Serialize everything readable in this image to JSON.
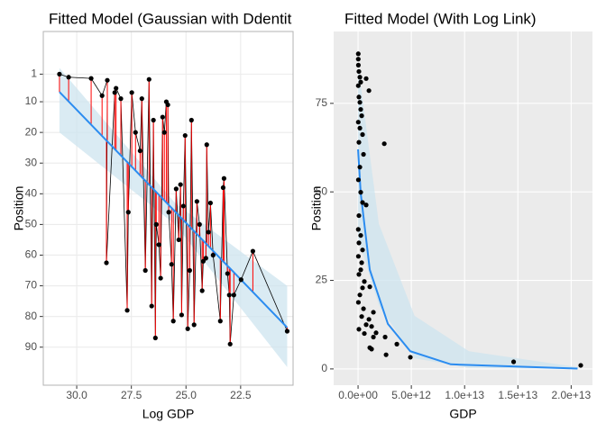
{
  "chart_data": [
    {
      "type": "scatter",
      "title": "Fitted Model (Gaussian with Ddentit",
      "x_label": "Log GDP",
      "y_label": "Position",
      "xlim": [
        31.53,
        20.1
      ],
      "ylim": [
        102.4,
        -12.9
      ],
      "xticks": [
        {
          "value": 30,
          "label": "30.0"
        },
        27.5,
        {
          "value": 25,
          "label": "25.0"
        },
        22.5
      ],
      "yticks": [
        1,
        10,
        20,
        30,
        40,
        50,
        60,
        70,
        80,
        90
      ],
      "background": "#ffffff",
      "grid_color": "#ebebeb",
      "panel_border": "#b3b3b3",
      "grid": true,
      "point_color": "#000000",
      "connect": true,
      "residual_color": "#ff0000",
      "x": [
        30.79,
        30.37,
        29.34,
        28.84,
        28.6,
        28.64,
        28.26,
        28.2,
        27.98,
        27.69,
        27.64,
        27.48,
        27.31,
        27.1,
        27.02,
        26.86,
        26.69,
        26.57,
        26.49,
        26.4,
        26.36,
        26.24,
        26.16,
        26.07,
        25.99,
        25.9,
        25.83,
        25.79,
        25.66,
        25.58,
        25.45,
        25.33,
        25.25,
        25.2,
        25.12,
        25.04,
        24.92,
        24.83,
        24.75,
        24.63,
        24.5,
        24.38,
        24.26,
        24.21,
        24.09,
        24.05,
        23.97,
        23.88,
        23.76,
        23.43,
        23.3,
        23.26,
        23.1,
        23.02,
        22.98,
        22.81,
        22.48,
        21.94,
        20.37
      ],
      "y": [
        1,
        2,
        2.4,
        8,
        3,
        62.5,
        7,
        5.6,
        9,
        78,
        46,
        7,
        20,
        26,
        9,
        65,
        2.7,
        76.6,
        16,
        87,
        50,
        56.6,
        67.5,
        15,
        20,
        10,
        11,
        46,
        63,
        81.5,
        38.4,
        55,
        37,
        79.5,
        44,
        21,
        84,
        65,
        16,
        82.7,
        42.5,
        50,
        71.6,
        62,
        61,
        24,
        52.5,
        43,
        60,
        81.5,
        38,
        35,
        66,
        73,
        89,
        73,
        68,
        58.7,
        84.8
      ],
      "fit": {
        "color": "#2b8cf0",
        "x": [
          30.79,
          20.37
        ],
        "y": [
          6.8,
          83.6
        ]
      },
      "ribbon": {
        "color": "#cde4ef",
        "x": [
          30.79,
          25.5,
          20.37
        ],
        "lower": [
          -1,
          43,
          70
        ],
        "upper": [
          20,
          50,
          96.5
        ]
      }
    },
    {
      "type": "scatter",
      "title": "Fitted Model (With Log Link)",
      "x_label": "GDP",
      "y_label": "Position",
      "xlim": [
        -2290000000000.0,
        22000000000000.0
      ],
      "ylim": [
        -4.6,
        95.3
      ],
      "xticks": [
        {
          "value": 0,
          "label": "0.0e+00"
        },
        {
          "value": 5000000000000.0,
          "label": "5.0e+12"
        },
        {
          "value": 10000000000000.0,
          "label": "1.0e+13"
        },
        {
          "value": 15000000000000.0,
          "label": "1.5e+13"
        },
        {
          "value": 20000000000000.0,
          "label": "2.0e+13"
        }
      ],
      "yticks": [
        0,
        25,
        50,
        75
      ],
      "background": "#ebebeb",
      "grid_color": "#ffffff",
      "grid": true,
      "point_color": "#000000",
      "x": [
        20000000000.0,
        20000000000.0,
        30000000000.0,
        80000000000.0,
        170000000000.0,
        250000000000.0,
        20000000000.0,
        760000000000.0,
        1020000000000.0,
        80000000000.0,
        170000000000.0,
        250000000000.0,
        340000000000.0,
        20000000000.0,
        170000000000.0,
        420000000000.0,
        80000000000.0,
        2460000000000.0,
        510000000000.0,
        170000000000.0,
        30000000000.0,
        250000000000.0,
        420000000000.0,
        760000000000.0,
        80000000000.0,
        20000000000.0,
        250000000000.0,
        80000000000.0,
        420000000000.0,
        30000000000.0,
        340000000000.0,
        250000000000.0,
        80000000000.0,
        590000000000.0,
        420000000000.0,
        1100000000000.0,
        170000000000.0,
        30000000000.0,
        510000000000.0,
        1440000000000.0,
        340000000000.0,
        1020000000000.0,
        760000000000.0,
        80000000000.0,
        590000000000.0,
        1270000000000.0,
        1690000000000.0,
        1440000000000.0,
        1100000000000.0,
        1270000000000.0,
        2540000000000.0,
        2630000000000.0,
        3640000000000.0,
        4910000000000.0,
        14600000000000.0,
        20900000000000.0
      ],
      "y": [
        89,
        87.5,
        85.8,
        84,
        82.4,
        81,
        80,
        82,
        78.6,
        76.8,
        75.3,
        73.3,
        71.5,
        69.7,
        68,
        66.2,
        64,
        63.6,
        60.6,
        57,
        53.4,
        49.9,
        47,
        46.3,
        43.3,
        39.4,
        37.7,
        35.6,
        33.6,
        31.8,
        30,
        28,
        26.7,
        24.7,
        22.9,
        23.2,
        20.9,
        18.8,
        17,
        16,
        14.8,
        14,
        12.5,
        11.2,
        10,
        12,
        10.2,
        9,
        6,
        5.6,
        9,
        4,
        7,
        3.3,
        2,
        1
      ],
      "fit": {
        "color": "#2b8cf0",
        "x": [
          0,
          250000000000.0,
          1100000000000.0,
          2800000000000.0,
          4900000000000.0,
          8700000000000.0,
          20600000000000.0
        ],
        "y": [
          62,
          49.6,
          28,
          12.7,
          5,
          1.3,
          0.1
        ]
      },
      "ribbon": {
        "color": "#cde4ef",
        "x": [
          0,
          1950000000000.0,
          5300000000000.0,
          10400000000000.0,
          20600000000000.0
        ],
        "lower": [
          37,
          18,
          3,
          0.3,
          0
        ],
        "upper": [
          86,
          41,
          15,
          5,
          0.5
        ]
      }
    }
  ]
}
